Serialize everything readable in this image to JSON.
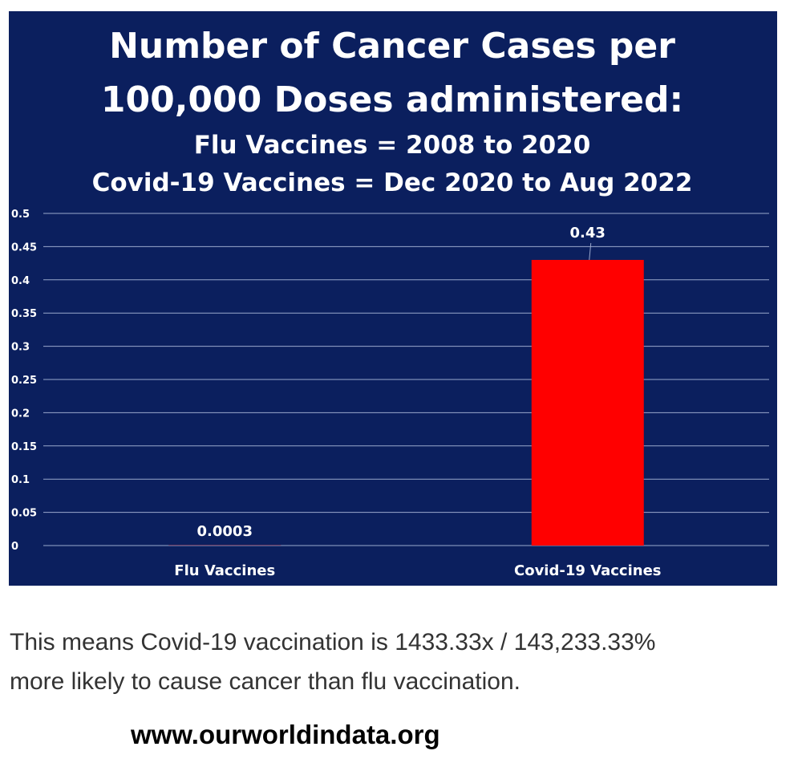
{
  "chart_data": {
    "type": "bar",
    "title": [
      "Number of Cancer Cases per",
      "100,000 Doses administered:",
      "Flu Vaccines = 2008 to 2020",
      "Covid-19 Vaccines = Dec 2020 to Aug 2022"
    ],
    "categories": [
      "Flu Vaccines",
      "Covid-19 Vaccines"
    ],
    "values": [
      0.0003,
      0.43
    ],
    "data_labels": [
      "0.0003",
      "0.43"
    ],
    "ylim": [
      0,
      0.5
    ],
    "yticks": [
      "0",
      "0.05",
      "0.1",
      "0.15",
      "0.2",
      "0.25",
      "0.3",
      "0.35",
      "0.4",
      "0.45",
      "0.5"
    ],
    "grid": true,
    "legend": "none",
    "colors": {
      "background": "#0b1f5e",
      "bars": [
        "#ff0000",
        "#ff0000"
      ],
      "text": "#ffffff",
      "grid": "#9aa8cc"
    }
  },
  "caption": {
    "line1": "This means Covid-19 vaccination is 1433.33x / 143,233.33%",
    "line2": "more likely to cause cancer than flu vaccination."
  },
  "source": "www.ourworldindata.org"
}
